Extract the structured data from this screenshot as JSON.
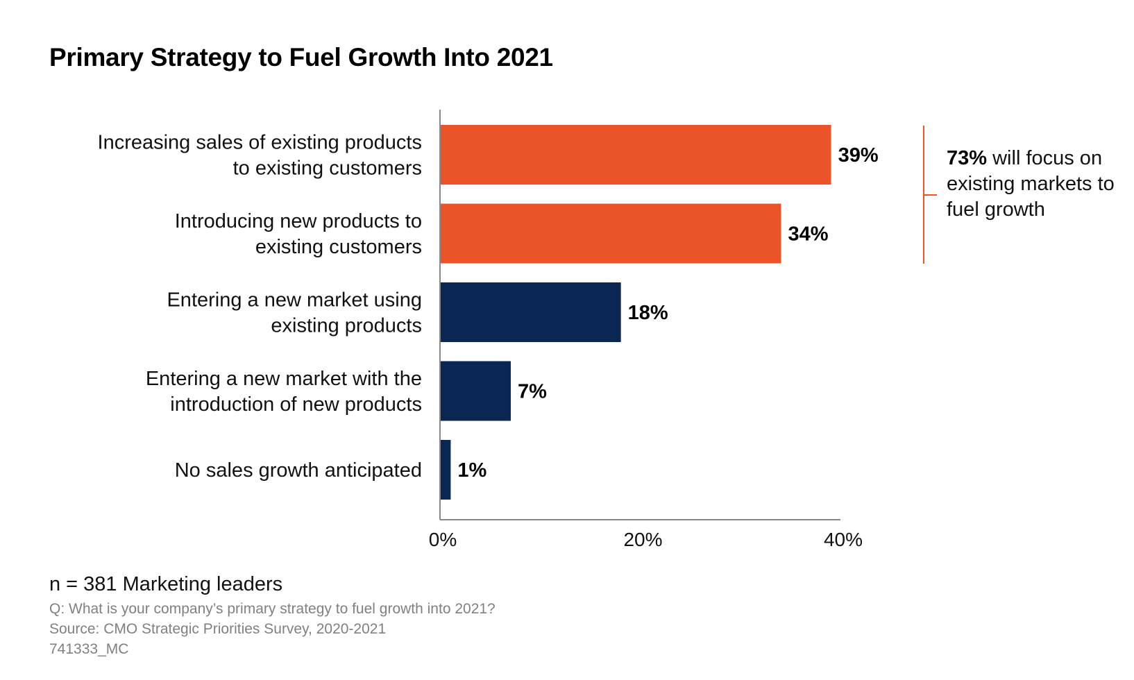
{
  "title": "Primary Strategy to Fuel Growth Into 2021",
  "chart_data": {
    "type": "bar",
    "orientation": "horizontal",
    "title": "Primary Strategy to Fuel Growth Into 2021",
    "categories": [
      [
        "Increasing sales of existing products",
        "to existing customers"
      ],
      [
        "Introducing new products to",
        "existing customers"
      ],
      [
        "Entering a new market using",
        "existing products"
      ],
      [
        "Entering a new market with the",
        "introduction of new products"
      ],
      [
        "No sales growth anticipated"
      ]
    ],
    "values": [
      39,
      34,
      18,
      7,
      1
    ],
    "value_labels": [
      "39%",
      "34%",
      "18%",
      "7%",
      "1%"
    ],
    "bar_colors": [
      "#EB5329",
      "#EB5329",
      "#0A2753",
      "#0A2753",
      "#0A2753"
    ],
    "xlim": [
      0,
      40
    ],
    "xticks": [
      0,
      20,
      40
    ],
    "xtick_labels": [
      "0%",
      "20%",
      "40%"
    ],
    "grid": false
  },
  "annotation": {
    "highlight": "73%",
    "text": "will focus on existing markets to fuel growth",
    "bracket_color": "#EB5329"
  },
  "footer": {
    "n": "n = 381 Marketing leaders",
    "question": "Q: What is your company’s primary strategy to fuel growth into 2021?",
    "source": "Source: CMO Strategic Priorities Survey, 2020-2021",
    "id": "741333_MC"
  }
}
